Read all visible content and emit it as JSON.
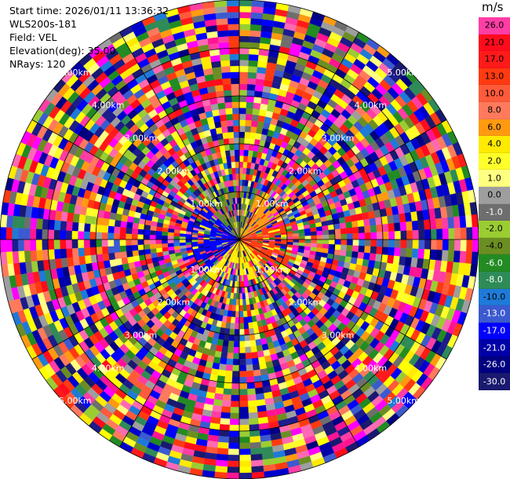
{
  "info": {
    "start_time": "Start time: 2026/01/11 13:36:32",
    "instrument": "WLS200s-181",
    "field": "Field: VEL",
    "elevation": "Elevation(deg): 35.00",
    "nrays": "NRays: 120"
  },
  "colorbar": {
    "unit": "m/s",
    "levels": [
      {
        "label": "26.0",
        "color": "#ff3da5",
        "text": "#000000"
      },
      {
        "label": "21.0",
        "color": "#ff0b1c",
        "text": "#000000"
      },
      {
        "label": "17.0",
        "color": "#ff1a1a",
        "text": "#000000"
      },
      {
        "label": "13.0",
        "color": "#ff3a10",
        "text": "#000000"
      },
      {
        "label": "10.0",
        "color": "#ff5a3a",
        "text": "#000000"
      },
      {
        "label": "8.0",
        "color": "#ff7a5c",
        "text": "#000000"
      },
      {
        "label": "6.0",
        "color": "#ff9a10",
        "text": "#000000"
      },
      {
        "label": "4.0",
        "color": "#ffea00",
        "text": "#000000"
      },
      {
        "label": "2.0",
        "color": "#ffff2a",
        "text": "#000000"
      },
      {
        "label": "1.0",
        "color": "#ffff80",
        "text": "#000000"
      },
      {
        "label": "0.0",
        "color": "#9e9e9e",
        "text": "#000000"
      },
      {
        "label": "-1.0",
        "color": "#6e6e6e",
        "text": "#ffffff"
      },
      {
        "label": "-2.0",
        "color": "#9acd32",
        "text": "#000000"
      },
      {
        "label": "-4.0",
        "color": "#6b8e23",
        "text": "#000000"
      },
      {
        "label": "-6.0",
        "color": "#228b22",
        "text": "#ffffff"
      },
      {
        "label": "-8.0",
        "color": "#2e8b57",
        "text": "#ffffff"
      },
      {
        "label": "-10.0",
        "color": "#1e7ad8",
        "text": "#000000"
      },
      {
        "label": "-13.0",
        "color": "#3c5ad0",
        "text": "#ffffff"
      },
      {
        "label": "-17.0",
        "color": "#0000ff",
        "text": "#ffffff"
      },
      {
        "label": "-21.0",
        "color": "#0000a8",
        "text": "#ffffff"
      },
      {
        "label": "-26.0",
        "color": "#000080",
        "text": "#ffffff"
      },
      {
        "label": "-30.0",
        "color": "#191970",
        "text": "#ffffff"
      }
    ]
  },
  "chart_data": {
    "type": "heatmap",
    "projection": "polar PPI",
    "field": "VEL",
    "nrays": 120,
    "range_max_km": 5.0,
    "range_rings_km": [
      1,
      2,
      3,
      4,
      5
    ],
    "ring_labels": [
      "1.00km",
      "2.00km",
      "3.00km",
      "4.00km",
      "5.00km"
    ],
    "near_field_pattern": [
      {
        "sector": "east",
        "color": "#ff3a10"
      },
      {
        "sector": "northeast",
        "color": "#ff9a10"
      },
      {
        "sector": "north",
        "color": "#6b8e23"
      },
      {
        "sector": "west",
        "color": "#0000ff"
      },
      {
        "sector": "south",
        "color": "#ffea00"
      }
    ]
  }
}
